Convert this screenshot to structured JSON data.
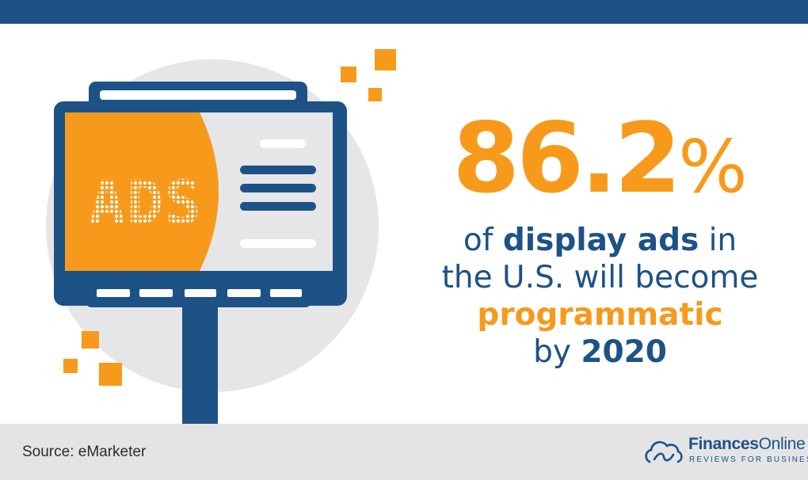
{
  "colors": {
    "navy": "#1d5286",
    "orange": "#f79a1c",
    "light_gray": "#e6e6e8",
    "footer_gray": "#e4e4e6",
    "white": "#ffffff"
  },
  "headline": {
    "value": "86.2",
    "unit": "%"
  },
  "caption": {
    "line1_pre": "of ",
    "line1_bold": "display ads",
    "line1_post": " in",
    "line2": "the U.S. will become",
    "line3": "programmatic",
    "line4_pre": "by ",
    "line4_bold": "2020"
  },
  "billboard": {
    "text": "ADS"
  },
  "footer": {
    "source": "Source: eMarketer",
    "logo_name_bold": "Finances",
    "logo_name_regular": "Online",
    "logo_tagline": "REVIEWS FOR BUSINESS"
  },
  "icons": {
    "logo_mark": "cloud-logo-icon"
  }
}
